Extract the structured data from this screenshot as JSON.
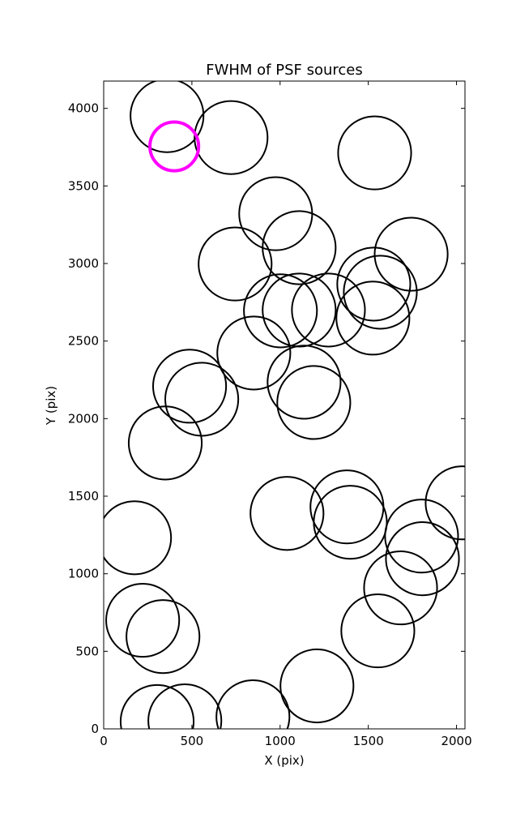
{
  "chart_data": {
    "type": "scatter",
    "title": "FWHM of PSF sources",
    "x_label": "X (pix)",
    "y_label": "Y (pix)",
    "x": [
      359,
      722,
      400,
      1536,
      975,
      1108,
      745,
      1743,
      1531,
      1568,
      1526,
      1108,
      1002,
      1274,
      851,
      487,
      556,
      1136,
      1191,
      349,
      2032,
      1379,
      1398,
      1039,
      175,
      1802,
      1807,
      1683,
      221,
      336,
      1554,
      1209,
      303,
      460,
      846
    ],
    "y": [
      3953,
      3812,
      3755,
      3713,
      3321,
      3102,
      2997,
      3060,
      2867,
      2815,
      2648,
      2700,
      2695,
      2700,
      2423,
      2209,
      2125,
      2235,
      2104,
      1843,
      1457,
      1431,
      1332,
      1389,
      1232,
      1243,
      1097,
      909,
      700,
      595,
      632,
      277,
      47,
      52,
      78
    ],
    "sizes": [
      207,
      207,
      138,
      207,
      207,
      207,
      207,
      207,
      207,
      207,
      207,
      207,
      207,
      207,
      207,
      207,
      207,
      207,
      207,
      207,
      207,
      207,
      207,
      207,
      207,
      207,
      207,
      207,
      207,
      207,
      207,
      207,
      207,
      207,
      207
    ],
    "colors": [
      "#000000",
      "#000000",
      "#ff00ff",
      "#000000",
      "#000000",
      "#000000",
      "#000000",
      "#000000",
      "#000000",
      "#000000",
      "#000000",
      "#000000",
      "#000000",
      "#000000",
      "#000000",
      "#000000",
      "#000000",
      "#000000",
      "#000000",
      "#000000",
      "#000000",
      "#000000",
      "#000000",
      "#000000",
      "#000000",
      "#000000",
      "#000000",
      "#000000",
      "#000000",
      "#000000",
      "#000000",
      "#000000",
      "#000000",
      "#000000",
      "#000000"
    ],
    "xlim": [
      0,
      2048
    ],
    "ylim": [
      0,
      4176
    ],
    "xticks": [
      0,
      500,
      1000,
      1500,
      2000
    ],
    "yticks": [
      0,
      500,
      1000,
      1500,
      2000,
      2500,
      3000,
      3500,
      4000
    ]
  }
}
